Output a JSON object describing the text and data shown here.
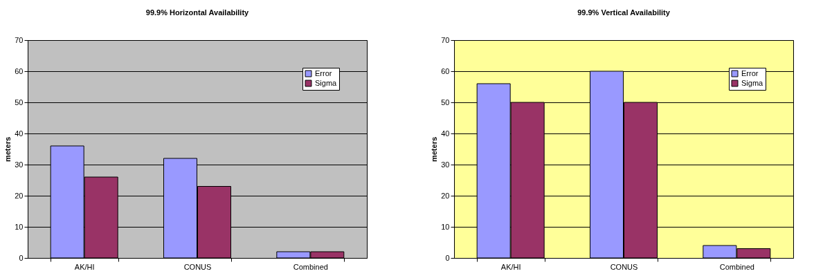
{
  "chart_data": [
    {
      "type": "bar",
      "title": "99.9% Horizontal Availability",
      "ylabel": "meters",
      "categories": [
        "AK/HI",
        "CONUS",
        "Combined"
      ],
      "ylim": [
        0,
        70
      ],
      "yticks": [
        0,
        10,
        20,
        30,
        40,
        50,
        60,
        70
      ],
      "grid": "y",
      "legend": "top right",
      "series": [
        {
          "name": "Error",
          "color": "#9999ff",
          "values": [
            36,
            32,
            2
          ]
        },
        {
          "name": "Sigma",
          "color": "#993366",
          "values": [
            26,
            23,
            2
          ]
        }
      ]
    },
    {
      "type": "bar",
      "title": "99.9% Vertical Availability",
      "ylabel": "meters",
      "categories": [
        "AK/HI",
        "CONUS",
        "Combined"
      ],
      "ylim": [
        0,
        70
      ],
      "yticks": [
        0,
        10,
        20,
        30,
        40,
        50,
        60,
        70
      ],
      "grid": "y",
      "legend": "top right",
      "series": [
        {
          "name": "Error",
          "color": "#9999ff",
          "values": [
            56,
            60,
            4
          ]
        },
        {
          "name": "Sigma",
          "color": "#993366",
          "values": [
            50,
            50,
            3
          ]
        }
      ]
    }
  ]
}
